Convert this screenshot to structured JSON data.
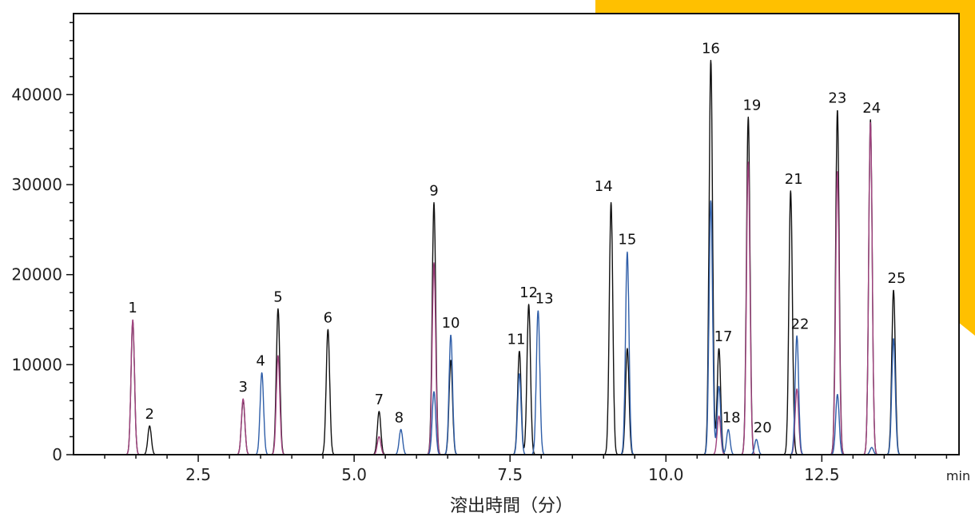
{
  "chart_data": {
    "type": "line",
    "xlabel": "溶出時間（分）",
    "x_unit": "min",
    "ylabel": "",
    "xlim": [
      0.5,
      14.7
    ],
    "ylim": [
      0,
      49000
    ],
    "x_ticks": [
      "2.5",
      "5.0",
      "7.5",
      "10.0",
      "12.5"
    ],
    "y_ticks": [
      "0",
      "10000",
      "20000",
      "30000",
      "40000"
    ],
    "background_accent": "#ffc000",
    "series": [
      {
        "color": "#111111",
        "peaks": [
          {
            "x": 1.45,
            "h": 14800
          },
          {
            "x": 1.72,
            "h": 3200
          },
          {
            "x": 3.22,
            "h": 6000
          },
          {
            "x": 3.78,
            "h": 16200
          },
          {
            "x": 4.58,
            "h": 13900
          },
          {
            "x": 5.4,
            "h": 4800
          },
          {
            "x": 6.28,
            "h": 28000
          },
          {
            "x": 6.55,
            "h": 10500
          },
          {
            "x": 7.65,
            "h": 11500
          },
          {
            "x": 7.8,
            "h": 16700
          },
          {
            "x": 9.12,
            "h": 28000
          },
          {
            "x": 9.38,
            "h": 11800
          },
          {
            "x": 10.72,
            "h": 43800
          },
          {
            "x": 10.85,
            "h": 11800
          },
          {
            "x": 11.32,
            "h": 37500
          },
          {
            "x": 12.0,
            "h": 29300
          },
          {
            "x": 12.75,
            "h": 38300
          },
          {
            "x": 13.28,
            "h": 37200
          },
          {
            "x": 13.65,
            "h": 18300
          }
        ]
      },
      {
        "color": "#a0427e",
        "peaks": [
          {
            "x": 1.45,
            "h": 15000
          },
          {
            "x": 3.22,
            "h": 6200
          },
          {
            "x": 3.78,
            "h": 11000
          },
          {
            "x": 5.4,
            "h": 2000
          },
          {
            "x": 6.28,
            "h": 21300
          },
          {
            "x": 10.85,
            "h": 4300
          },
          {
            "x": 11.32,
            "h": 32500
          },
          {
            "x": 12.1,
            "h": 7300
          },
          {
            "x": 12.75,
            "h": 31500
          },
          {
            "x": 13.28,
            "h": 36900
          }
        ]
      },
      {
        "color": "#2f5ea8",
        "peaks": [
          {
            "x": 3.52,
            "h": 9100
          },
          {
            "x": 5.75,
            "h": 2800
          },
          {
            "x": 6.28,
            "h": 7000
          },
          {
            "x": 6.55,
            "h": 13300
          },
          {
            "x": 7.65,
            "h": 9000
          },
          {
            "x": 7.95,
            "h": 16000
          },
          {
            "x": 9.38,
            "h": 22500
          },
          {
            "x": 10.72,
            "h": 28200
          },
          {
            "x": 10.85,
            "h": 7600
          },
          {
            "x": 11.0,
            "h": 2800
          },
          {
            "x": 11.45,
            "h": 1700
          },
          {
            "x": 12.1,
            "h": 13200
          },
          {
            "x": 12.75,
            "h": 6700
          },
          {
            "x": 13.3,
            "h": 800
          },
          {
            "x": 13.65,
            "h": 12900
          }
        ]
      }
    ],
    "annotations": [
      {
        "text": "1",
        "x": 1.45,
        "y": 15800
      },
      {
        "text": "2",
        "x": 1.72,
        "y": 4000
      },
      {
        "text": "3",
        "x": 3.22,
        "y": 7000
      },
      {
        "text": "4",
        "x": 3.5,
        "y": 9900
      },
      {
        "text": "5",
        "x": 3.78,
        "y": 17000
      },
      {
        "text": "6",
        "x": 4.58,
        "y": 14700
      },
      {
        "text": "7",
        "x": 5.4,
        "y": 5600
      },
      {
        "text": "8",
        "x": 5.72,
        "y": 3600
      },
      {
        "text": "9",
        "x": 6.28,
        "y": 28800
      },
      {
        "text": "10",
        "x": 6.55,
        "y": 14100
      },
      {
        "text": "11",
        "x": 7.6,
        "y": 12300
      },
      {
        "text": "12",
        "x": 7.8,
        "y": 17500
      },
      {
        "text": "13",
        "x": 8.05,
        "y": 16800
      },
      {
        "text": "14",
        "x": 9.0,
        "y": 29300
      },
      {
        "text": "15",
        "x": 9.38,
        "y": 23400
      },
      {
        "text": "16",
        "x": 10.72,
        "y": 44600
      },
      {
        "text": "17",
        "x": 10.92,
        "y": 12600
      },
      {
        "text": "18",
        "x": 11.05,
        "y": 3600
      },
      {
        "text": "19",
        "x": 11.38,
        "y": 38300
      },
      {
        "text": "20",
        "x": 11.55,
        "y": 2500
      },
      {
        "text": "21",
        "x": 12.05,
        "y": 30100
      },
      {
        "text": "22",
        "x": 12.15,
        "y": 14000
      },
      {
        "text": "23",
        "x": 12.75,
        "y": 39100
      },
      {
        "text": "24",
        "x": 13.3,
        "y": 38000
      },
      {
        "text": "25",
        "x": 13.7,
        "y": 19100
      }
    ]
  }
}
